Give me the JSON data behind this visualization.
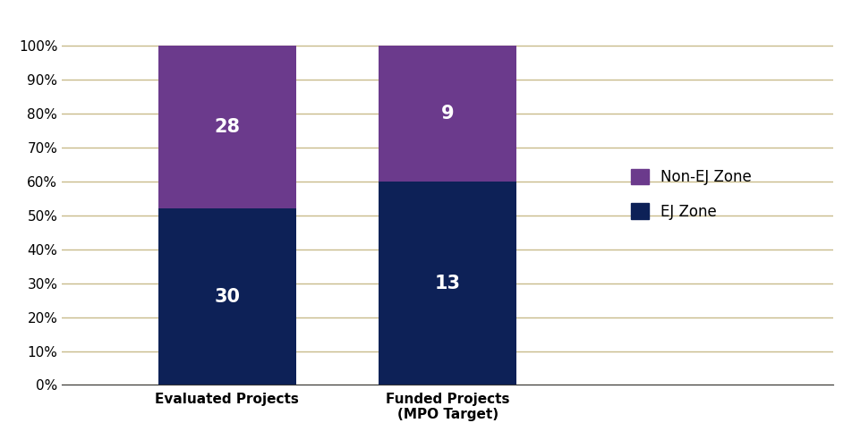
{
  "categories": [
    "Evaluated Projects",
    "Funded Projects\n(MPO Target)"
  ],
  "ej_values": [
    52,
    60
  ],
  "non_ej_values": [
    48,
    40
  ],
  "ej_labels": [
    "30",
    "13"
  ],
  "non_ej_labels": [
    "28",
    "9"
  ],
  "ej_color": "#0d2157",
  "non_ej_color": "#6b3a8c",
  "bar_width": 0.5,
  "ylim": [
    0,
    108
  ],
  "yticks": [
    0,
    10,
    20,
    30,
    40,
    50,
    60,
    70,
    80,
    90,
    100
  ],
  "ytick_labels": [
    "0%",
    "10%",
    "20%",
    "30%",
    "40%",
    "50%",
    "60%",
    "70%",
    "80%",
    "90%",
    "100%"
  ],
  "legend_non_ej": "Non-EJ Zone",
  "legend_ej": "EJ Zone",
  "grid_color": "#c8bb8a",
  "background_color": "#ffffff",
  "label_fontsize": 11,
  "tick_fontsize": 11,
  "legend_fontsize": 12,
  "value_fontsize": 15
}
